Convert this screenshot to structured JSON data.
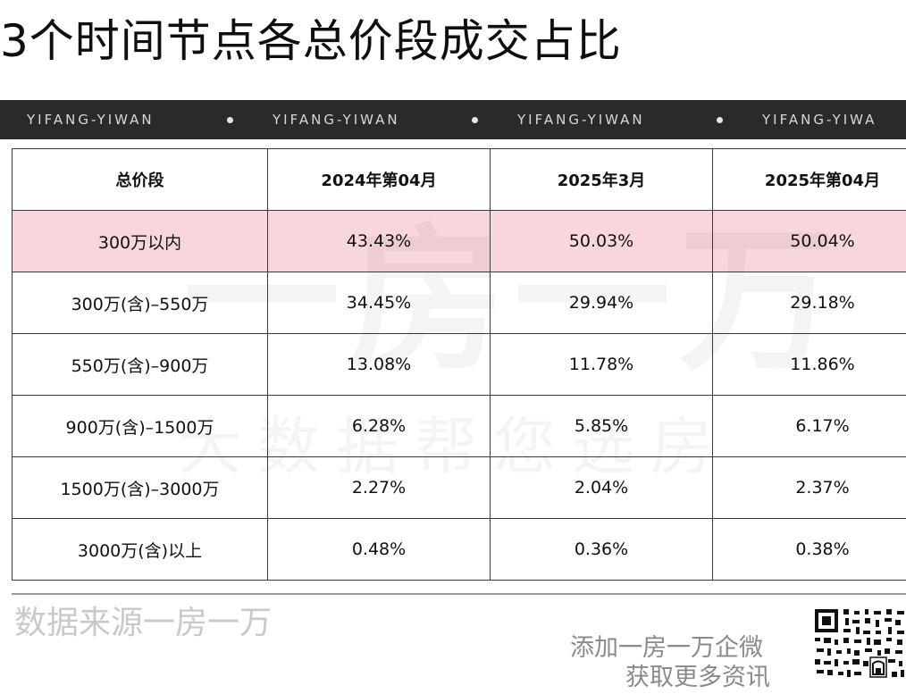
{
  "title": "3个时间节点各总价段成交占比",
  "ribbon": {
    "items": [
      "YIFANG-YIWAN",
      "YIFANG-YIWAN",
      "YIFANG-YIWAN",
      "YIFANG-YIWA"
    ]
  },
  "table": {
    "headers": [
      "总价段",
      "2024年第04月",
      "2025年3月",
      "2025年第04月"
    ],
    "rows": [
      [
        "300万以内",
        "43.43%",
        "50.03%",
        "50.04%"
      ],
      [
        "300万(含)–550万",
        "34.45%",
        "29.94%",
        "29.18%"
      ],
      [
        "550万(含)–900万",
        "13.08%",
        "11.78%",
        "11.86%"
      ],
      [
        "900万(含)–1500万",
        "6.28%",
        "5.85%",
        "6.17%"
      ],
      [
        "1500万(含)–3000万",
        "2.27%",
        "2.04%",
        "2.37%"
      ],
      [
        "3000万(含)以上",
        "0.48%",
        "0.36%",
        "0.38%"
      ]
    ],
    "highlight_row_color": "#f8d7dc"
  },
  "watermark": {
    "main": "一房一万",
    "sub": "大数据帮您选房"
  },
  "footer": {
    "source": "数据来源一房一万",
    "cta_line1": "添加一房一万企微",
    "cta_line2": "获取更多资讯"
  },
  "colors": {
    "ribbon_bg": "#2a2a2a",
    "highlight": "#f8d7dc",
    "border": "#3a3a3a"
  }
}
